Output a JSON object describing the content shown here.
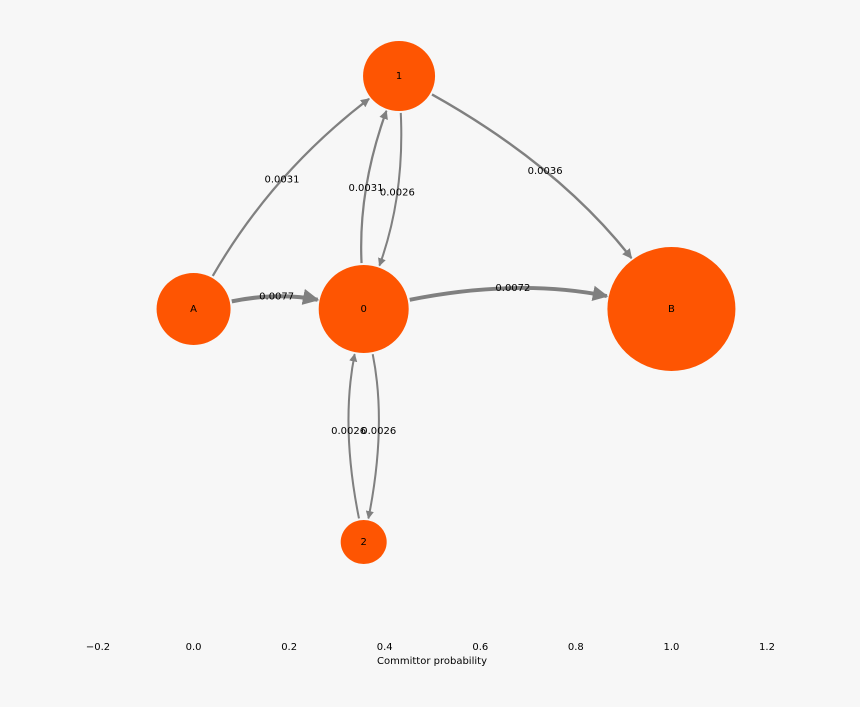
{
  "chart_data": {
    "type": "network",
    "xlabel": "Committor probability",
    "xlim": [
      -0.2,
      1.2
    ],
    "xticks": [
      {
        "value": -0.2,
        "label": "−0.2"
      },
      {
        "value": 0,
        "label": "0.0"
      },
      0.2,
      0.4,
      0.6,
      0.8,
      {
        "value": 1,
        "label": "1.0"
      },
      1.2
    ],
    "node_color": "#fe5502",
    "edge_color": "#808080",
    "nodes": [
      {
        "label": "A",
        "x": 0
      },
      {
        "label": "0",
        "x": 0.356
      },
      {
        "label": "1",
        "x": 0.43
      },
      {
        "label": "2",
        "x": 0.356
      },
      {
        "label": "B",
        "x": 1
      }
    ],
    "edges": [
      {
        "source": "A",
        "target": "1",
        "value": 0.0031
      },
      {
        "source": "A",
        "target": "0",
        "value": 0.0077
      },
      {
        "source": "0",
        "target": "1",
        "value": 0.0031
      },
      {
        "source": "1",
        "target": "0",
        "value": 0.0026
      },
      {
        "source": "1",
        "target": "B",
        "value": 0.0036
      },
      {
        "source": "0",
        "target": "B",
        "value": 0.0072
      },
      {
        "source": "0",
        "target": "2",
        "value": 0.0026
      },
      {
        "source": "2",
        "target": "0",
        "value": 0.0026
      }
    ]
  }
}
